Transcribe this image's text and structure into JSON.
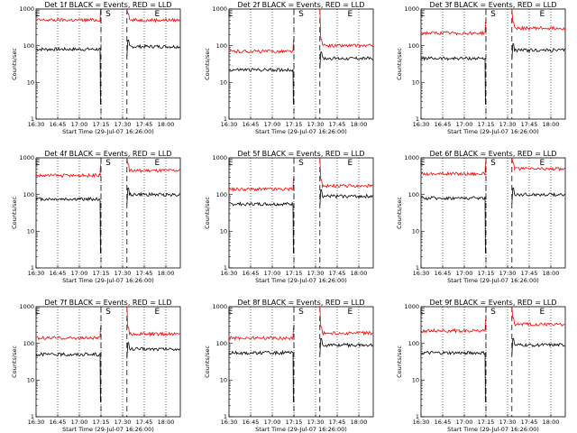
{
  "colors": {
    "events": "#000000",
    "lld": "#ff0000"
  },
  "chart_data": [
    {
      "type": "line",
      "title": "Det 1f BLACK = Events, RED = LLD",
      "xlabel": "Start Time (29-Jul-07 16:26:00)",
      "ylabel": "Counts/sec",
      "yscale": "log",
      "ylim": [
        1,
        1000
      ],
      "xlim": [
        "16:30",
        "18:10"
      ],
      "x_ticks": [
        "16:30",
        "16:45",
        "17:00",
        "17:15",
        "17:30",
        "17:45",
        "18:00"
      ],
      "y_ticks": [
        "1",
        "10",
        "100",
        "1000"
      ],
      "markers": [
        {
          "label": "E",
          "x": "16:31"
        },
        {
          "label": "S",
          "x": "17:20"
        },
        {
          "label": "E",
          "x": "17:54"
        }
      ],
      "gap": [
        "17:15",
        "17:33"
      ],
      "series": [
        {
          "name": "Events",
          "color": "#000000",
          "pre": 80,
          "post": 95
        },
        {
          "name": "LLD",
          "color": "#ff0000",
          "pre": 500,
          "post": 500
        }
      ]
    },
    {
      "type": "line",
      "title": "Det 2f BLACK = Events, RED = LLD",
      "xlabel": "Start Time (29-Jul-07 16:26:00)",
      "ylabel": "Counts/sec",
      "yscale": "log",
      "ylim": [
        1,
        1000
      ],
      "xlim": [
        "16:30",
        "18:10"
      ],
      "x_ticks": [
        "16:30",
        "16:45",
        "17:00",
        "17:15",
        "17:30",
        "17:45",
        "18:00"
      ],
      "y_ticks": [
        "1",
        "10",
        "100",
        "1000"
      ],
      "markers": [
        {
          "label": "E",
          "x": "16:31"
        },
        {
          "label": "S",
          "x": "17:20"
        },
        {
          "label": "E",
          "x": "17:54"
        }
      ],
      "gap": [
        "17:15",
        "17:33"
      ],
      "series": [
        {
          "name": "Events",
          "color": "#000000",
          "pre": 22,
          "post": 45
        },
        {
          "name": "LLD",
          "color": "#ff0000",
          "pre": 70,
          "post": 100
        }
      ]
    },
    {
      "type": "line",
      "title": "Det 3f BLACK = Events, RED = LLD",
      "xlabel": "Start Time (29-Jul-07 16:26:00)",
      "ylabel": "Counts/sec",
      "yscale": "log",
      "ylim": [
        1,
        1000
      ],
      "xlim": [
        "16:30",
        "18:10"
      ],
      "x_ticks": [
        "16:30",
        "16:45",
        "17:00",
        "17:15",
        "17:30",
        "17:45",
        "18:00"
      ],
      "y_ticks": [
        "1",
        "10",
        "100",
        "1000"
      ],
      "markers": [
        {
          "label": "E",
          "x": "16:31"
        },
        {
          "label": "S",
          "x": "17:20"
        },
        {
          "label": "E",
          "x": "17:54"
        }
      ],
      "gap": [
        "17:15",
        "17:33"
      ],
      "series": [
        {
          "name": "Events",
          "color": "#000000",
          "pre": 45,
          "post": 75
        },
        {
          "name": "LLD",
          "color": "#ff0000",
          "pre": 220,
          "post": 300
        }
      ]
    },
    {
      "type": "line",
      "title": "Det 4f BLACK = Events, RED = LLD",
      "xlabel": "Start Time (29-Jul-07 16:26:00)",
      "ylabel": "Counts/sec",
      "yscale": "log",
      "ylim": [
        1,
        1000
      ],
      "xlim": [
        "16:30",
        "18:10"
      ],
      "x_ticks": [
        "16:30",
        "16:45",
        "17:00",
        "17:15",
        "17:30",
        "17:45",
        "18:00"
      ],
      "y_ticks": [
        "1",
        "10",
        "100",
        "1000"
      ],
      "markers": [
        {
          "label": "E",
          "x": "16:31"
        },
        {
          "label": "S",
          "x": "17:20"
        },
        {
          "label": "E",
          "x": "17:54"
        }
      ],
      "gap": [
        "17:15",
        "17:33"
      ],
      "series": [
        {
          "name": "Events",
          "color": "#000000",
          "pre": 75,
          "post": 100
        },
        {
          "name": "LLD",
          "color": "#ff0000",
          "pre": 330,
          "post": 450
        }
      ]
    },
    {
      "type": "line",
      "title": "Det 5f BLACK = Events, RED = LLD",
      "xlabel": "Start Time (29-Jul-07 16:26:00)",
      "ylabel": "Counts/sec",
      "yscale": "log",
      "ylim": [
        1,
        1000
      ],
      "xlim": [
        "16:30",
        "18:10"
      ],
      "x_ticks": [
        "16:30",
        "16:45",
        "17:00",
        "17:15",
        "17:30",
        "17:45",
        "18:00"
      ],
      "y_ticks": [
        "1",
        "10",
        "100",
        "1000"
      ],
      "markers": [
        {
          "label": "E",
          "x": "16:31"
        },
        {
          "label": "S",
          "x": "17:20"
        },
        {
          "label": "E",
          "x": "17:54"
        }
      ],
      "gap": [
        "17:15",
        "17:33"
      ],
      "series": [
        {
          "name": "Events",
          "color": "#000000",
          "pre": 55,
          "post": 90
        },
        {
          "name": "LLD",
          "color": "#ff0000",
          "pre": 140,
          "post": 170
        }
      ]
    },
    {
      "type": "line",
      "title": "Det 6f BLACK = Events, RED = LLD",
      "xlabel": "Start Time (29-Jul-07 16:26:00)",
      "ylabel": "Counts/sec",
      "yscale": "log",
      "ylim": [
        1,
        1000
      ],
      "xlim": [
        "16:30",
        "18:10"
      ],
      "x_ticks": [
        "16:30",
        "16:45",
        "17:00",
        "17:15",
        "17:30",
        "17:45",
        "18:00"
      ],
      "y_ticks": [
        "1",
        "10",
        "100",
        "1000"
      ],
      "markers": [
        {
          "label": "E",
          "x": "16:31"
        },
        {
          "label": "S",
          "x": "17:20"
        },
        {
          "label": "E",
          "x": "17:54"
        }
      ],
      "gap": [
        "17:15",
        "17:33"
      ],
      "series": [
        {
          "name": "Events",
          "color": "#000000",
          "pre": 80,
          "post": 100
        },
        {
          "name": "LLD",
          "color": "#ff0000",
          "pre": 370,
          "post": 500
        }
      ]
    },
    {
      "type": "line",
      "title": "Det 7f BLACK = Events, RED = LLD",
      "xlabel": "Start Time (29-Jul-07 16:26:00)",
      "ylabel": "Counts/sec",
      "yscale": "log",
      "ylim": [
        1,
        1000
      ],
      "xlim": [
        "16:30",
        "18:10"
      ],
      "x_ticks": [
        "16:30",
        "16:45",
        "17:00",
        "17:15",
        "17:30",
        "17:45",
        "18:00"
      ],
      "y_ticks": [
        "1",
        "10",
        "100",
        "1000"
      ],
      "markers": [
        {
          "label": "E",
          "x": "16:31"
        },
        {
          "label": "S",
          "x": "17:20"
        },
        {
          "label": "E",
          "x": "17:54"
        }
      ],
      "gap": [
        "17:15",
        "17:33"
      ],
      "series": [
        {
          "name": "Events",
          "color": "#000000",
          "pre": 50,
          "post": 70
        },
        {
          "name": "LLD",
          "color": "#ff0000",
          "pre": 140,
          "post": 180
        }
      ]
    },
    {
      "type": "line",
      "title": "Det 8f BLACK = Events, RED = LLD",
      "xlabel": "Start Time (29-Jul-07 16:26:00)",
      "ylabel": "Counts/sec",
      "yscale": "log",
      "ylim": [
        1,
        1000
      ],
      "xlim": [
        "16:30",
        "18:10"
      ],
      "x_ticks": [
        "16:30",
        "16:45",
        "17:00",
        "17:15",
        "17:30",
        "17:45",
        "18:00"
      ],
      "y_ticks": [
        "1",
        "10",
        "100",
        "1000"
      ],
      "markers": [
        {
          "label": "E",
          "x": "16:31"
        },
        {
          "label": "S",
          "x": "17:20"
        },
        {
          "label": "E",
          "x": "17:54"
        }
      ],
      "gap": [
        "17:15",
        "17:33"
      ],
      "series": [
        {
          "name": "Events",
          "color": "#000000",
          "pre": 55,
          "post": 90
        },
        {
          "name": "LLD",
          "color": "#ff0000",
          "pre": 140,
          "post": 190
        }
      ]
    },
    {
      "type": "line",
      "title": "Det 9f BLACK = Events, RED = LLD",
      "xlabel": "Start Time (29-Jul-07 16:26:00)",
      "ylabel": "Counts/sec",
      "yscale": "log",
      "ylim": [
        1,
        1000
      ],
      "xlim": [
        "16:30",
        "18:10"
      ],
      "x_ticks": [
        "16:30",
        "16:45",
        "17:00",
        "17:15",
        "17:30",
        "17:45",
        "18:00"
      ],
      "y_ticks": [
        "1",
        "10",
        "100",
        "1000"
      ],
      "markers": [
        {
          "label": "E",
          "x": "16:31"
        },
        {
          "label": "S",
          "x": "17:20"
        },
        {
          "label": "E",
          "x": "17:54"
        }
      ],
      "gap": [
        "17:15",
        "17:33"
      ],
      "series": [
        {
          "name": "Events",
          "color": "#000000",
          "pre": 55,
          "post": 90
        },
        {
          "name": "LLD",
          "color": "#ff0000",
          "pre": 220,
          "post": 330
        }
      ]
    }
  ]
}
